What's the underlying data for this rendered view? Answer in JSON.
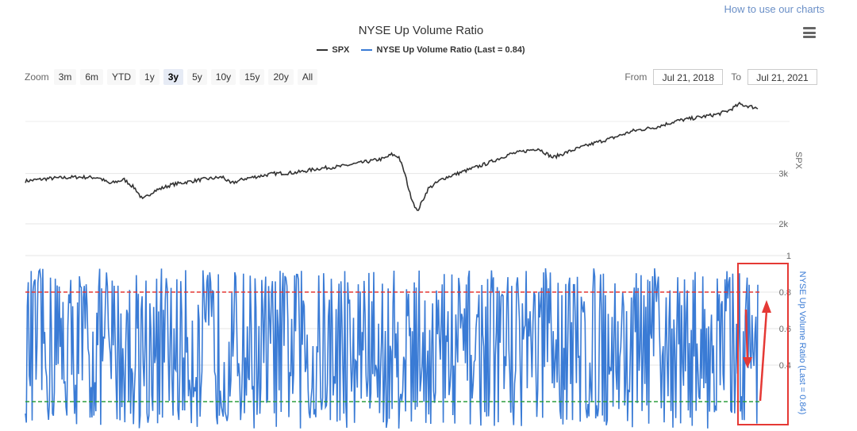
{
  "header": {
    "link": "How to use our charts",
    "title": "NYSE Up Volume Ratio"
  },
  "legend": [
    {
      "name": "SPX",
      "color": "#333333"
    },
    {
      "name": "NYSE Up Volume Ratio (Last = 0.84)",
      "color": "#3a7bd5"
    }
  ],
  "zoom": {
    "label": "Zoom",
    "buttons": [
      "3m",
      "6m",
      "YTD",
      "1y",
      "3y",
      "5y",
      "10y",
      "15y",
      "20y",
      "All"
    ],
    "selected": "3y"
  },
  "range": {
    "from_label": "From",
    "from_value": "Jul 21, 2018",
    "to_label": "To",
    "to_value": "Jul 21, 2021"
  },
  "chart_data": [
    {
      "type": "line",
      "ylabel": "SPX",
      "ticks": [
        {
          "value": 2000,
          "label": "2k"
        },
        {
          "value": 3000,
          "label": "3k"
        }
      ],
      "x_range": [
        "Jul 21, 2018",
        "Jul 21, 2021"
      ],
      "ylim": [
        2000,
        4400
      ],
      "series": [
        {
          "name": "SPX",
          "color": "#333333",
          "x": [
            0,
            0.03,
            0.07,
            0.1,
            0.115,
            0.135,
            0.15,
            0.16,
            0.175,
            0.2,
            0.24,
            0.27,
            0.28,
            0.3,
            0.34,
            0.37,
            0.4,
            0.43,
            0.46,
            0.49,
            0.5,
            0.51,
            0.518,
            0.525,
            0.535,
            0.55,
            0.57,
            0.6,
            0.63,
            0.66,
            0.7,
            0.72,
            0.75,
            0.78,
            0.8,
            0.83,
            0.86,
            0.89,
            0.92,
            0.945,
            0.96,
            0.975,
            1.0
          ],
          "values": [
            2850,
            2900,
            2930,
            2920,
            2800,
            2880,
            2700,
            2480,
            2650,
            2780,
            2880,
            2930,
            2800,
            2900,
            3000,
            3020,
            3100,
            3140,
            3220,
            3300,
            3380,
            3330,
            3000,
            2600,
            2240,
            2700,
            2900,
            3050,
            3200,
            3380,
            3500,
            3320,
            3480,
            3620,
            3700,
            3850,
            3920,
            4050,
            4120,
            4180,
            4250,
            4380,
            4300
          ]
        }
      ]
    },
    {
      "type": "line",
      "ylabel": "NYSE Up Volume Ratio (Last = 0.84)",
      "ticks": [
        {
          "value": 0.4,
          "label": "0.4"
        },
        {
          "value": 0.6,
          "label": "0.6"
        },
        {
          "value": 0.8,
          "label": "0.8"
        },
        {
          "value": 1.0,
          "label": "1"
        }
      ],
      "ylim": [
        0.0,
        1.0
      ],
      "reference_lines": [
        {
          "value": 0.8,
          "color": "#e53935"
        },
        {
          "value": 0.2,
          "color": "#2e9e3e"
        }
      ],
      "series": [
        {
          "name": "NYSE Up Volume Ratio (Last = 0.84)",
          "color": "#3a7bd5",
          "count": 760,
          "last": 0.84
        }
      ]
    }
  ]
}
